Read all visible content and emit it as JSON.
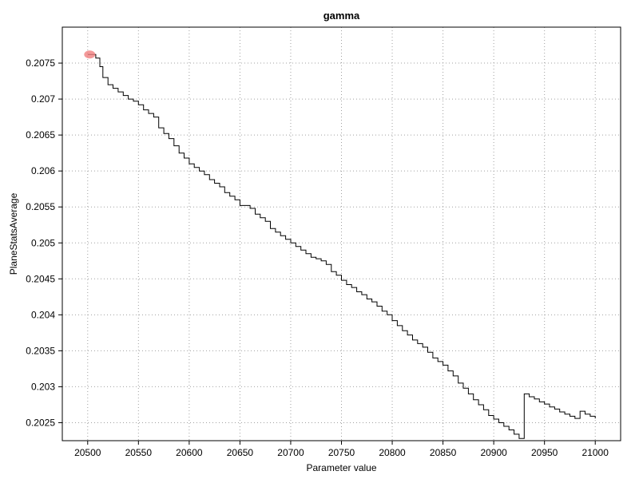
{
  "chart_data": {
    "type": "line",
    "title": "gamma",
    "xlabel": "Parameter value",
    "ylabel": "PlaneStatsAverage",
    "xlim": [
      20475,
      21025
    ],
    "ylim": [
      0.20225,
      0.208
    ],
    "x_ticks": [
      20500,
      20550,
      20600,
      20650,
      20700,
      20750,
      20800,
      20850,
      20900,
      20950,
      21000
    ],
    "x_tick_labels": [
      "20500",
      "20550",
      "20600",
      "20650",
      "20700",
      "20750",
      "20800",
      "20850",
      "20900",
      "20950",
      "21000"
    ],
    "y_ticks": [
      0.2025,
      0.203,
      0.2035,
      0.204,
      0.2045,
      0.205,
      0.2055,
      0.206,
      0.2065,
      0.207,
      0.2075
    ],
    "y_tick_labels": [
      "0.2025",
      "0.203",
      "0.2035",
      "0.204",
      "0.2045",
      "0.205",
      "0.2055",
      "0.206",
      "0.2065",
      "0.207",
      "0.2075"
    ],
    "grid": true,
    "series": [
      {
        "color": "#000000",
        "x": [
          20500,
          20505,
          20508,
          20512,
          20515,
          20520,
          20525,
          20530,
          20535,
          20540,
          20545,
          20550,
          20555,
          20560,
          20565,
          20570,
          20575,
          20580,
          20585,
          20590,
          20595,
          20600,
          20605,
          20610,
          20615,
          20620,
          20625,
          20630,
          20635,
          20640,
          20645,
          20650,
          20655,
          20660,
          20665,
          20670,
          20675,
          20680,
          20685,
          20690,
          20695,
          20700,
          20705,
          20710,
          20715,
          20720,
          20725,
          20730,
          20735,
          20740,
          20745,
          20750,
          20755,
          20760,
          20765,
          20770,
          20775,
          20780,
          20785,
          20790,
          20795,
          20800,
          20805,
          20810,
          20815,
          20820,
          20825,
          20830,
          20835,
          20840,
          20845,
          20850,
          20855,
          20860,
          20865,
          20870,
          20875,
          20880,
          20885,
          20890,
          20895,
          20900,
          20905,
          20910,
          20915,
          20920,
          20925,
          20930,
          20935,
          20940,
          20945,
          20950,
          20955,
          20960,
          20965,
          20970,
          20975,
          20980,
          20985,
          20990,
          20995,
          21000
        ],
        "y": [
          0.20762,
          0.20762,
          0.20757,
          0.20745,
          0.2073,
          0.2072,
          0.20715,
          0.2071,
          0.20705,
          0.207,
          0.20697,
          0.20692,
          0.20685,
          0.2068,
          0.20675,
          0.2066,
          0.20652,
          0.20645,
          0.20635,
          0.20625,
          0.20618,
          0.2061,
          0.20605,
          0.206,
          0.20595,
          0.20588,
          0.20583,
          0.20578,
          0.2057,
          0.20565,
          0.2056,
          0.20552,
          0.20552,
          0.20548,
          0.2054,
          0.20535,
          0.2053,
          0.2052,
          0.20515,
          0.2051,
          0.20505,
          0.205,
          0.20495,
          0.2049,
          0.20485,
          0.2048,
          0.20478,
          0.20475,
          0.2047,
          0.2046,
          0.20455,
          0.20448,
          0.20442,
          0.20438,
          0.20432,
          0.20428,
          0.20422,
          0.20418,
          0.20412,
          0.20405,
          0.204,
          0.20392,
          0.20385,
          0.20378,
          0.20372,
          0.20365,
          0.2036,
          0.20355,
          0.20348,
          0.2034,
          0.20335,
          0.2033,
          0.20322,
          0.20315,
          0.20305,
          0.20298,
          0.2029,
          0.20282,
          0.20275,
          0.20268,
          0.2026,
          0.20255,
          0.2025,
          0.20245,
          0.2024,
          0.20234,
          0.20228,
          0.2029,
          0.20286,
          0.20283,
          0.20279,
          0.20276,
          0.20272,
          0.20269,
          0.20265,
          0.20262,
          0.20259,
          0.20256,
          0.20266,
          0.20262,
          0.20259,
          0.20256
        ]
      }
    ],
    "highlight_point": {
      "x": 20502,
      "y": 0.20762,
      "color": "#f08080"
    }
  }
}
